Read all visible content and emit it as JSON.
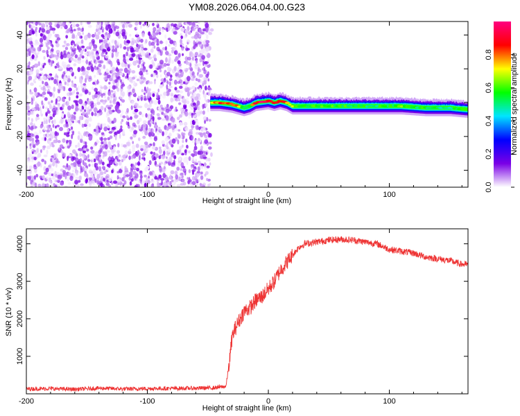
{
  "figure_title": "YM08.2026.064.04.00.G23",
  "chart_data": [
    {
      "type": "heatmap",
      "title": "YM08.2026.064.04.00.G23",
      "xlabel": "Height of straight line (km)",
      "ylabel": "Frequency (Hz)",
      "xlim": [
        -200,
        165
      ],
      "ylim": [
        -50,
        48
      ],
      "x_ticks": [
        -200,
        -100,
        0,
        100
      ],
      "y_ticks": [
        -40,
        -20,
        0,
        20,
        40
      ],
      "x_tick_labels": [
        "-200",
        "-100",
        "0",
        "100"
      ],
      "y_tick_labels": [
        "-40",
        "-20",
        "0",
        "20",
        "40"
      ],
      "noise_region": {
        "x_range": [
          -200,
          -48
        ],
        "value_range": [
          0.0,
          0.25
        ],
        "frequency_range": [
          -50,
          48
        ]
      },
      "peak_track": {
        "x": [
          -48,
          -40,
          -30,
          -25,
          -20,
          -15,
          -10,
          0,
          5,
          10,
          15,
          20,
          30,
          50,
          80,
          100,
          110,
          130,
          150,
          165
        ],
        "frequency": [
          0,
          0,
          -1,
          -2,
          -3,
          -2,
          0,
          1,
          0,
          1,
          0,
          -2,
          -2,
          -2,
          -2,
          -2,
          -2,
          -3,
          -3,
          -4
        ],
        "amplitude": [
          0.6,
          0.95,
          0.9,
          0.85,
          0.5,
          0.6,
          0.95,
          1.0,
          0.95,
          0.9,
          0.8,
          0.7,
          0.6,
          0.6,
          0.55,
          0.55,
          0.6,
          0.55,
          0.5,
          0.6
        ]
      },
      "colorbar": {
        "label": "Normalized spectral amplitude",
        "range": [
          0,
          1
        ],
        "ticks": [
          0.0,
          0.2,
          0.4,
          0.6,
          0.8
        ],
        "tick_labels": [
          "0.0",
          "0.2",
          "0.4",
          "0.6",
          "0.8"
        ],
        "colors": [
          "#ffffff",
          "#7a00e6",
          "#0000ff",
          "#00e5ff",
          "#00ff00",
          "#ffff00",
          "#ff0000",
          "#ff0080"
        ]
      }
    },
    {
      "type": "line",
      "xlabel": "Height of straight line (km)",
      "ylabel": "SNR (10 * v/v)",
      "xlim": [
        -200,
        165
      ],
      "ylim": [
        0,
        4400
      ],
      "x_ticks": [
        -200,
        -100,
        0,
        100
      ],
      "y_ticks": [
        1000,
        2000,
        3000,
        4000
      ],
      "x_tick_labels": [
        "-200",
        "-100",
        "0",
        "100"
      ],
      "y_tick_labels": [
        "1000",
        "2000",
        "3000",
        "4000"
      ],
      "series": [
        {
          "name": "SNR",
          "color": "#ee3333",
          "x": [
            -200,
            -180,
            -160,
            -140,
            -120,
            -100,
            -80,
            -60,
            -45,
            -35,
            -32,
            -30,
            -28,
            -25,
            -20,
            -15,
            -10,
            -5,
            0,
            5,
            10,
            15,
            20,
            25,
            30,
            40,
            50,
            60,
            70,
            80,
            90,
            100,
            110,
            120,
            130,
            140,
            150,
            160,
            165
          ],
          "y": [
            130,
            140,
            120,
            150,
            130,
            140,
            145,
            150,
            160,
            200,
            900,
            1500,
            1700,
            1900,
            2200,
            2300,
            2500,
            2600,
            2800,
            3000,
            3300,
            3500,
            3700,
            3900,
            4000,
            4050,
            4100,
            4120,
            4100,
            4050,
            4000,
            3850,
            3800,
            3750,
            3650,
            3600,
            3550,
            3450,
            3450
          ]
        }
      ]
    }
  ]
}
